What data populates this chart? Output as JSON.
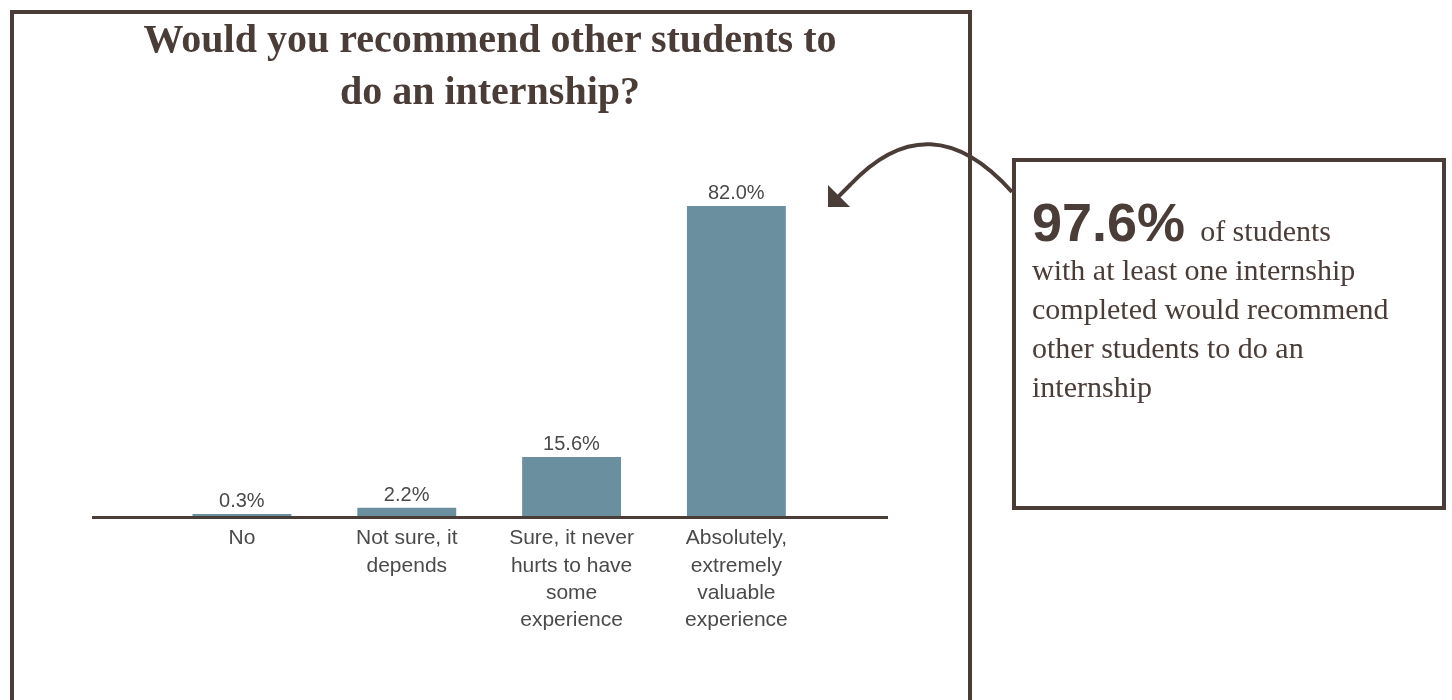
{
  "chart_data": {
    "type": "bar",
    "title": "Would you recommend other students to do an internship?",
    "categories": [
      "No",
      "Not sure, it depends",
      "Sure, it never hurts to have some experience",
      "Absolutely, extremely valuable experience"
    ],
    "values": [
      0.3,
      2.2,
      15.6,
      82.0
    ],
    "value_labels": [
      "0.3%",
      "2.2%",
      "15.6%",
      "82.0%"
    ],
    "color": "#6a8f9f",
    "annotations": [
      "97.6% of students with at least one internship completed would recommend other students to do an internship"
    ]
  }
}
